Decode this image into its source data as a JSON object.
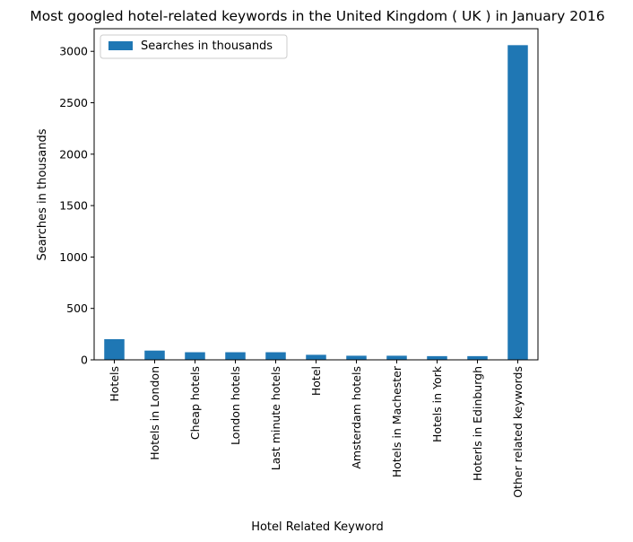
{
  "chart_data": {
    "type": "bar",
    "title": "Most googled hotel-related keywords in the United Kingdom ( UK ) in January 2016",
    "xlabel": "Hotel Related Keyword",
    "ylabel": "Searches in thousands",
    "categories": [
      "Hotels",
      "Hotels in London",
      "Cheap hotels",
      "London hotels",
      "Last minute hotels",
      "Hotel",
      "Amsterdam hotels",
      "Hotels in Machester",
      "Hotels in York",
      "Hoterls in Edinburgh",
      "Other related keywords"
    ],
    "series": [
      {
        "name": "Searches in thousands",
        "values": [
          201,
          90,
          74,
          74,
          74,
          49,
          40,
          40,
          36,
          36,
          3060
        ],
        "color": "#1f77b4"
      }
    ],
    "ylim": [
      0,
      3220
    ],
    "yticks": [
      0,
      500,
      1000,
      1500,
      2000,
      2500,
      3000
    ],
    "grid": false,
    "legend": "top-left"
  }
}
